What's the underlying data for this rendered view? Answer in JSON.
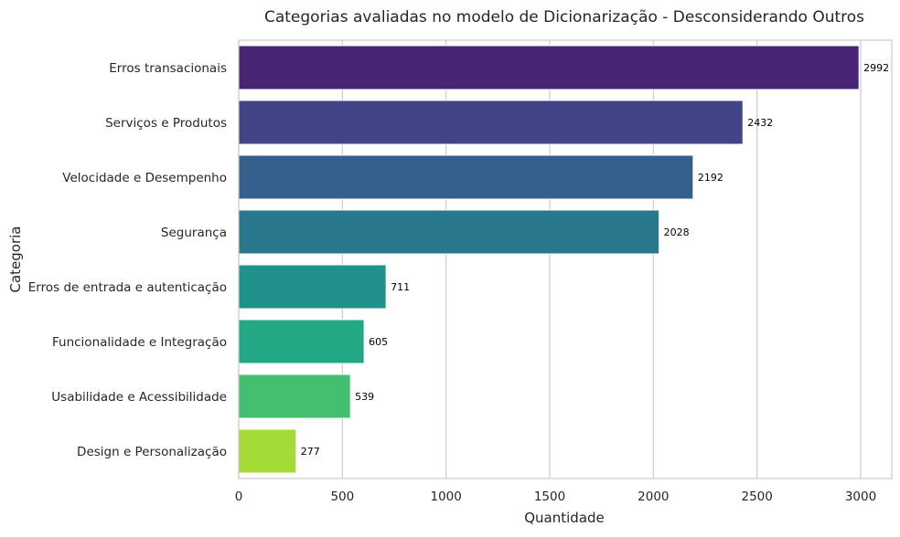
{
  "chart_data": {
    "type": "bar",
    "orientation": "horizontal",
    "title": "Categorias avaliadas no modelo de Dicionarização - Desconsiderando Outros",
    "xlabel": "Quantidade",
    "ylabel": "Categoria",
    "categories": [
      "Erros transacionais",
      "Serviços e Produtos",
      "Velocidade e Desempenho",
      "Segurança",
      "Erros de entrada e autenticação",
      "Funcionalidade e Integração",
      "Usabilidade e Acessibilidade",
      "Design e Personalização"
    ],
    "values": [
      2992,
      2432,
      2192,
      2028,
      711,
      605,
      539,
      277
    ],
    "data_labels": [
      "2992",
      "2432",
      "2192",
      "2028",
      "711",
      "605",
      "539",
      "277"
    ],
    "colors": [
      "#482475",
      "#414487",
      "#355f8d",
      "#2a788e",
      "#21918c",
      "#22a884",
      "#44bf70",
      "#7ad151"
    ],
    "last_color": "#a5db36",
    "xlim": [
      0,
      3150
    ],
    "xticks": [
      0,
      500,
      1000,
      1500,
      2000,
      2500,
      3000
    ],
    "xtick_labels": [
      "0",
      "500",
      "1000",
      "1500",
      "2000",
      "2500",
      "3000"
    ],
    "grid": "vertical",
    "legend": "none"
  }
}
